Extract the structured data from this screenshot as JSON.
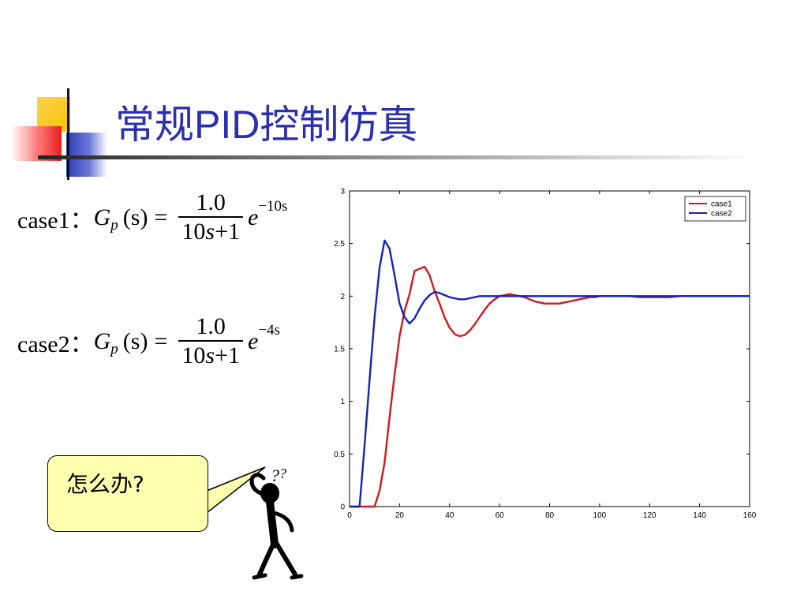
{
  "slide": {
    "title_part1": "常规",
    "title_part2": "PID",
    "title_part3": "控制仿真"
  },
  "formulas": [
    {
      "label": "case1：",
      "G": "G",
      "sub": "p",
      "arg": "(s)",
      "eq": "=",
      "num": "1.0",
      "den_a": "10",
      "den_s": "s",
      "den_b": "+1",
      "e": "e",
      "exp": "−10s"
    },
    {
      "label": "case2：",
      "G": "G",
      "sub": "p",
      "arg": "(s)",
      "eq": "=",
      "num": "1.0",
      "den_a": "10",
      "den_s": "s",
      "den_b": "+1",
      "e": "e",
      "exp": "−4s"
    }
  ],
  "callout": {
    "text": "怎么办?"
  },
  "colors": {
    "title": "#2a2fb0",
    "case1": "#d0191b",
    "case2": "#1324b5",
    "bubble": "#ffffb0"
  },
  "chart_data": {
    "type": "line",
    "xlim": [
      0,
      160
    ],
    "ylim": [
      0,
      3
    ],
    "x_ticks": [
      0,
      20,
      40,
      60,
      80,
      100,
      120,
      140,
      160
    ],
    "y_ticks": [
      0,
      0.5,
      1,
      1.5,
      2,
      2.5,
      3
    ],
    "x_tick_labels": [
      "0",
      "20",
      "40",
      "60",
      "80",
      "100",
      "120",
      "140",
      "160"
    ],
    "y_tick_labels": [
      "0",
      "0.5",
      "1",
      "1.5",
      "2",
      "2.5",
      "3"
    ],
    "grid": false,
    "legend": "top-right",
    "series": [
      {
        "name": "case1",
        "color": "#d0191b",
        "x": [
          0,
          10,
          12,
          14,
          16,
          18,
          20,
          22,
          24,
          26,
          28,
          30,
          32,
          34,
          36,
          38,
          40,
          42,
          44,
          46,
          48,
          50,
          52,
          54,
          56,
          58,
          60,
          62,
          64,
          66,
          68,
          70,
          72,
          74,
          76,
          78,
          80,
          82,
          84,
          86,
          88,
          90,
          92,
          94,
          96,
          98,
          100,
          104,
          108,
          112,
          116,
          120,
          124,
          128,
          132,
          136,
          140,
          144,
          148,
          152,
          156,
          160
        ],
        "y": [
          0,
          0,
          0.15,
          0.42,
          0.85,
          1.25,
          1.62,
          1.86,
          2.02,
          2.24,
          2.26,
          2.28,
          2.2,
          2.05,
          1.93,
          1.8,
          1.7,
          1.64,
          1.62,
          1.63,
          1.67,
          1.73,
          1.8,
          1.87,
          1.93,
          1.97,
          2.0,
          2.01,
          2.02,
          2.01,
          2.0,
          1.99,
          1.97,
          1.95,
          1.94,
          1.93,
          1.93,
          1.93,
          1.93,
          1.94,
          1.95,
          1.96,
          1.97,
          1.98,
          1.99,
          1.99,
          2.0,
          2.0,
          2.0,
          2.0,
          1.99,
          1.99,
          1.99,
          1.99,
          2.0,
          2.0,
          2.0,
          2.0,
          2.0,
          2.0,
          2.0,
          2.0
        ]
      },
      {
        "name": "case2",
        "color": "#1324b5",
        "x": [
          0,
          4,
          6,
          8,
          10,
          12,
          14,
          16,
          18,
          20,
          22,
          24,
          26,
          28,
          30,
          32,
          34,
          36,
          38,
          40,
          42,
          44,
          46,
          48,
          50,
          52,
          54,
          56,
          58,
          60,
          64,
          68,
          72,
          80,
          90,
          100,
          110,
          120,
          130,
          140,
          150,
          160
        ],
        "y": [
          0,
          0,
          0.58,
          1.2,
          1.8,
          2.27,
          2.53,
          2.45,
          2.2,
          1.93,
          1.8,
          1.74,
          1.79,
          1.88,
          1.96,
          2.01,
          2.04,
          2.03,
          2.01,
          1.99,
          1.98,
          1.97,
          1.97,
          1.98,
          1.99,
          2.0,
          2.0,
          2.0,
          2.0,
          2.0,
          2.0,
          2.0,
          2.0,
          2.0,
          2.0,
          2.0,
          2.0,
          2.0,
          2.0,
          2.0,
          2.0,
          2.0
        ]
      }
    ]
  }
}
